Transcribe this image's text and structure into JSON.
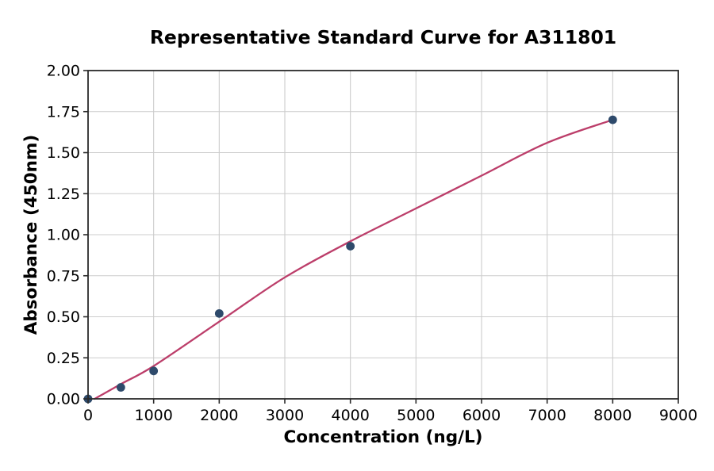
{
  "chart_data": {
    "type": "scatter",
    "title": "Representative Standard Curve for A311801",
    "xlabel": "Concentration (ng/L)",
    "ylabel": "Absorbance (450nm)",
    "xlim": [
      0,
      9000
    ],
    "ylim": [
      0.0,
      2.0
    ],
    "grid": true,
    "legend_position": "none",
    "x_ticks": [
      0,
      1000,
      2000,
      3000,
      4000,
      5000,
      6000,
      7000,
      8000,
      9000
    ],
    "x_tick_labels": [
      "0",
      "1000",
      "2000",
      "3000",
      "4000",
      "5000",
      "6000",
      "7000",
      "8000",
      "9000"
    ],
    "y_ticks": [
      0.0,
      0.25,
      0.5,
      0.75,
      1.0,
      1.25,
      1.5,
      1.75,
      2.0
    ],
    "y_tick_labels": [
      "0.00",
      "0.25",
      "0.50",
      "0.75",
      "1.00",
      "1.25",
      "1.50",
      "1.75",
      "2.00"
    ],
    "series": [
      {
        "name": "standard-points",
        "kind": "scatter",
        "points": [
          [
            0,
            0.0
          ],
          [
            500,
            0.07
          ],
          [
            1000,
            0.17
          ],
          [
            2000,
            0.52
          ],
          [
            4000,
            0.93
          ],
          [
            8000,
            1.7
          ]
        ]
      },
      {
        "name": "fitted-curve",
        "kind": "line",
        "points": [
          [
            100,
            0.0
          ],
          [
            500,
            0.09
          ],
          [
            1000,
            0.2
          ],
          [
            2000,
            0.47
          ],
          [
            3000,
            0.74
          ],
          [
            4000,
            0.96
          ],
          [
            5000,
            1.16
          ],
          [
            6000,
            1.36
          ],
          [
            7000,
            1.56
          ],
          [
            8000,
            1.7
          ]
        ]
      }
    ],
    "colors": {
      "marker": "#2e4a6b",
      "curve": "#bc3e6a",
      "grid": "#cccccc",
      "spine": "#2a2a2a",
      "text": "#000000",
      "background": "#ffffff"
    }
  }
}
